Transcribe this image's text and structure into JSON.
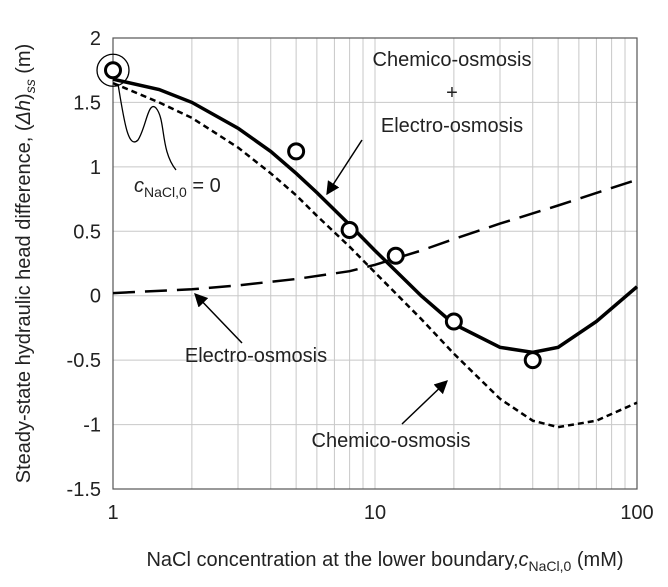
{
  "chart_data": {
    "type": "line",
    "ylabel": [
      "Steady-state hydraulic head difference, (",
      "Δh",
      ")",
      "ss",
      " (m)"
    ],
    "xlabel": [
      "NaCl concentration at the lower boundary,",
      "c",
      "NaCl,0",
      " (mM)"
    ],
    "log_x": true,
    "grid": true,
    "xlim": [
      1,
      100
    ],
    "xticks": [
      1,
      10,
      100
    ],
    "xminorticks": [
      2,
      3,
      4,
      5,
      6,
      7,
      8,
      9,
      20,
      30,
      40,
      50,
      60,
      70,
      80,
      90
    ],
    "ylim": [
      -1.5,
      2
    ],
    "yticks": [
      -1.5,
      -1,
      -0.5,
      0,
      0.5,
      1,
      1.5,
      2
    ],
    "series": [
      {
        "style": "solid",
        "color": "#000000",
        "x": [
          1,
          1.5,
          2,
          3,
          4,
          5,
          6,
          8,
          10,
          15,
          20,
          30,
          40,
          50,
          70,
          100
        ],
        "values": [
          1.68,
          1.6,
          1.5,
          1.3,
          1.12,
          0.95,
          0.8,
          0.55,
          0.35,
          0,
          -0.22,
          -0.4,
          -0.44,
          -0.4,
          -0.2,
          0.07
        ]
      },
      {
        "style": "short-dash",
        "color": "#000000",
        "x": [
          1,
          1.5,
          2,
          3,
          4,
          5,
          6,
          8,
          10,
          15,
          20,
          30,
          40,
          50,
          70,
          100
        ],
        "values": [
          1.65,
          1.5,
          1.38,
          1.15,
          0.95,
          0.78,
          0.62,
          0.38,
          0.18,
          -0.18,
          -0.45,
          -0.8,
          -0.97,
          -1.02,
          -0.97,
          -0.83
        ]
      },
      {
        "style": "long-dash",
        "color": "#000000",
        "x": [
          1,
          2,
          3,
          5,
          8,
          10,
          15,
          20,
          30,
          50,
          100
        ],
        "values": [
          0.02,
          0.05,
          0.08,
          0.13,
          0.19,
          0.24,
          0.35,
          0.44,
          0.56,
          0.7,
          0.9
        ]
      },
      {
        "style": "circles",
        "color": "#000000",
        "x": [
          1,
          5,
          8,
          12,
          20,
          40
        ],
        "values": [
          1.75,
          1.12,
          0.51,
          0.31,
          -0.2,
          -0.5
        ]
      }
    ],
    "annotations": [
      {
        "lines": [
          "Chemico-osmosis",
          "+",
          "Electro-osmosis"
        ]
      },
      {
        "lines": [
          "Electro-osmosis"
        ]
      },
      {
        "lines": [
          "Chemico-osmosis"
        ]
      },
      {
        "parts": [
          "c",
          "NaCl,0",
          " = 0"
        ]
      }
    ]
  }
}
